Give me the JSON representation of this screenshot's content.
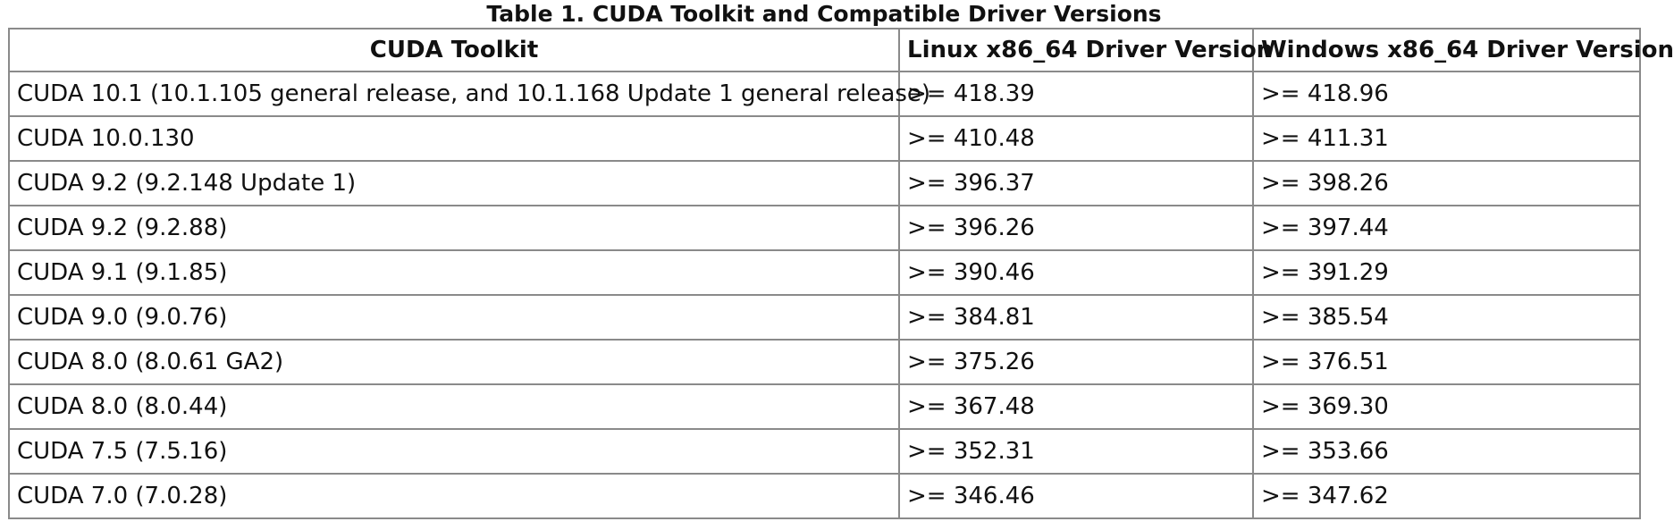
{
  "caption": "Table 1. CUDA Toolkit and Compatible Driver Versions",
  "table": {
    "headers": [
      "CUDA Toolkit",
      "Linux x86_64 Driver Version",
      "Windows x86_64 Driver Version"
    ],
    "rows": [
      [
        "CUDA 10.1 (10.1.105 general release, and 10.1.168 Update 1 general release)",
        ">= 418.39",
        ">= 418.96"
      ],
      [
        "CUDA 10.0.130",
        ">= 410.48",
        ">= 411.31"
      ],
      [
        "CUDA 9.2 (9.2.148 Update 1)",
        ">= 396.37",
        ">= 398.26"
      ],
      [
        "CUDA 9.2 (9.2.88)",
        ">= 396.26",
        ">= 397.44"
      ],
      [
        "CUDA 9.1 (9.1.85)",
        ">= 390.46",
        ">= 391.29"
      ],
      [
        "CUDA 9.0 (9.0.76)",
        ">= 384.81",
        ">= 385.54"
      ],
      [
        "CUDA 8.0 (8.0.61 GA2)",
        ">= 375.26",
        ">= 376.51"
      ],
      [
        "CUDA 8.0 (8.0.44)",
        ">= 367.48",
        ">= 369.30"
      ],
      [
        "CUDA 7.5 (7.5.16)",
        ">= 352.31",
        ">= 353.66"
      ],
      [
        "CUDA 7.0 (7.0.28)",
        ">= 346.46",
        ">= 347.62"
      ]
    ]
  }
}
